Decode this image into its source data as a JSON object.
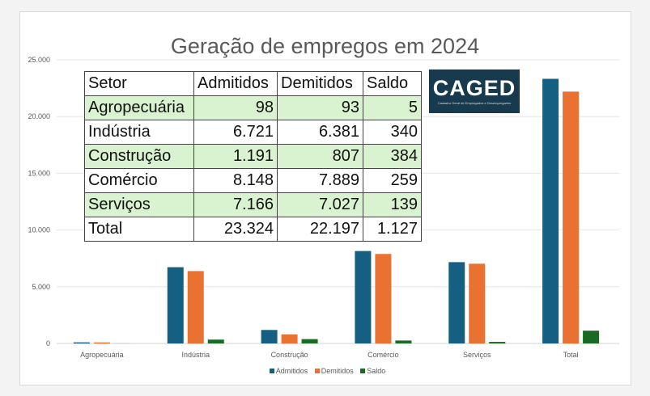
{
  "chart_data": {
    "type": "bar",
    "title": "Geração de empregos em 2024",
    "categories": [
      "Agropecuária",
      "Indústria",
      "Construção",
      "Comércio",
      "Serviços",
      "Total"
    ],
    "series": [
      {
        "name": "Admitidos",
        "color": "#156082",
        "values": [
          98,
          6721,
          1191,
          8148,
          7166,
          23324
        ]
      },
      {
        "name": "Demitidos",
        "color": "#e97132",
        "values": [
          93,
          6381,
          807,
          7889,
          7027,
          22197
        ]
      },
      {
        "name": "Saldo",
        "color": "#196b24",
        "values": [
          5,
          340,
          384,
          259,
          139,
          1127
        ]
      }
    ],
    "ylim": [
      0,
      25000
    ],
    "yticks": [
      "0",
      "5.000",
      "10.000",
      "15.000",
      "20.000",
      "25.000"
    ],
    "grid": true,
    "legend": "bottom"
  },
  "table": {
    "headers": [
      "Setor",
      "Admitidos",
      "Demitidos",
      "Saldo"
    ],
    "rows": [
      [
        "Agropecuária",
        "98",
        "93",
        "5"
      ],
      [
        "Indústria",
        "6.721",
        "6.381",
        "340"
      ],
      [
        "Construção",
        "1.191",
        "807",
        "384"
      ],
      [
        "Comércio",
        "8.148",
        "7.889",
        "259"
      ],
      [
        "Serviços",
        "7.166",
        "7.027",
        "139"
      ],
      [
        "Total",
        "23.324",
        "22.197",
        "1.127"
      ]
    ]
  },
  "logo": {
    "name": "CAGED",
    "subtitle": "Cadastro Geral de Empregados e Desempregados"
  }
}
